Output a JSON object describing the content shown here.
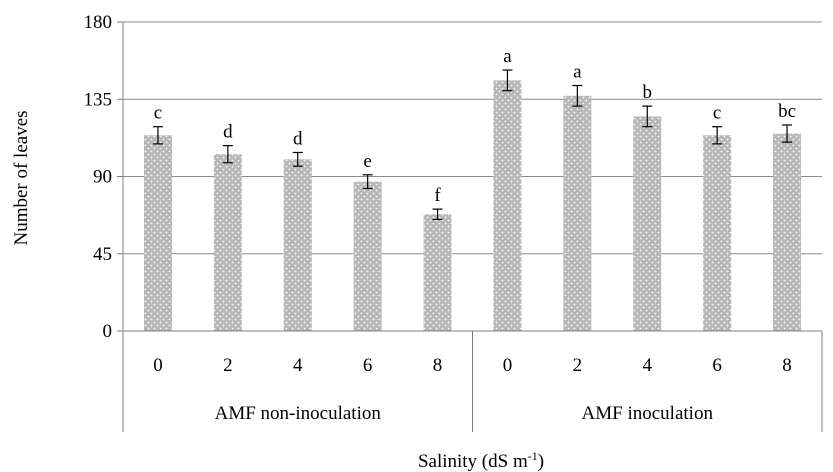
{
  "chart_data": {
    "type": "bar",
    "ylabel": "Number of leaves",
    "xlabel": {
      "main": "Salinity (dS m",
      "sup": "-1",
      "close": ")"
    },
    "ylim": [
      0,
      180
    ],
    "yticks": [
      0,
      45,
      90,
      135,
      180
    ],
    "grid": true,
    "groups": [
      {
        "name": "AMF non-inoculation",
        "categories": [
          "0",
          "2",
          "4",
          "6",
          "8"
        ],
        "values": [
          114,
          103,
          100,
          87,
          68
        ],
        "errors": [
          5,
          5,
          4,
          4,
          3
        ],
        "letters": [
          "c",
          "d",
          "d",
          "e",
          "f"
        ]
      },
      {
        "name": "AMF inoculation",
        "categories": [
          "0",
          "2",
          "4",
          "6",
          "8"
        ],
        "values": [
          146,
          137,
          125,
          114,
          115
        ],
        "errors": [
          6,
          6,
          6,
          5,
          5
        ],
        "letters": [
          "a",
          "a",
          "b",
          "c",
          "bc"
        ]
      }
    ],
    "colors": {
      "bar": "#b7b7b7",
      "bar_dots": "#ffffff",
      "grid": "#8c8c8c",
      "axis": "#7f7f7f"
    }
  }
}
